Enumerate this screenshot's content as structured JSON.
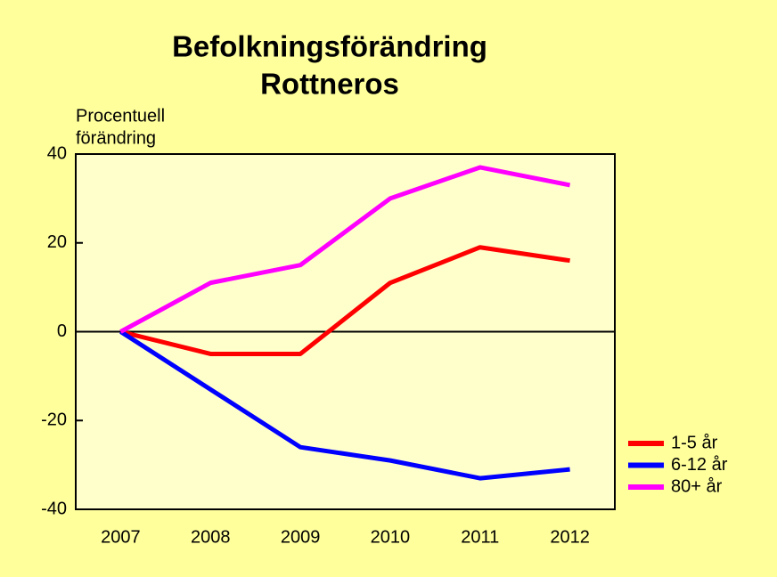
{
  "chart_data": {
    "type": "line",
    "title": "Befolkningsförändring",
    "subtitle": "Rottneros",
    "y_label": [
      "Procentuell",
      "förändring"
    ],
    "categories": [
      "2007",
      "2008",
      "2009",
      "2010",
      "2011",
      "2012"
    ],
    "series": [
      {
        "name": "1-5 år",
        "color": "#ff0000",
        "values": [
          0,
          -5,
          -5,
          11,
          19,
          16
        ]
      },
      {
        "name": "6-12 år",
        "color": "#0000ff",
        "values": [
          0,
          -13,
          -26,
          -29,
          -33,
          -31
        ]
      },
      {
        "name": "80+ år",
        "color": "#ff00ff",
        "values": [
          0,
          11,
          15,
          30,
          37,
          33
        ]
      }
    ],
    "ylim": [
      -40,
      40
    ],
    "yticks": [
      -40,
      -20,
      0,
      20,
      40
    ],
    "legend": "right"
  }
}
